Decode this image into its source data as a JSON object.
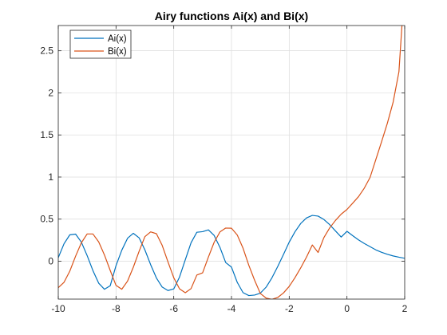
{
  "chart_data": {
    "type": "line",
    "title": "Airy functions Ai(x) and Bi(x)",
    "xlabel": "",
    "ylabel": "",
    "xlim": [
      -10,
      2
    ],
    "ylim": [
      -0.45,
      2.8
    ],
    "xticks": [
      -10,
      -8,
      -6,
      -4,
      -2,
      0,
      2
    ],
    "xtick_labels": [
      "-10",
      "-8",
      "-6",
      "-4",
      "-2",
      "0",
      "2"
    ],
    "yticks": [
      0,
      0.5,
      1,
      1.5,
      2,
      2.5
    ],
    "ytick_labels": [
      "0",
      "0.5",
      "1",
      "1.5",
      "2",
      "2.5"
    ],
    "grid": true,
    "legend_position": "top-left",
    "series": [
      {
        "name": "Ai(x)",
        "color": "#0072BD",
        "x": [
          -10,
          -9.8,
          -9.6,
          -9.4,
          -9.2,
          -9,
          -8.8,
          -8.6,
          -8.4,
          -8.2,
          -8,
          -7.8,
          -7.6,
          -7.4,
          -7.2,
          -7,
          -6.8,
          -6.6,
          -6.4,
          -6.2,
          -6,
          -5.8,
          -5.6,
          -5.4,
          -5.2,
          -5,
          -4.8,
          -4.6,
          -4.4,
          -4.2,
          -4,
          -3.8,
          -3.6,
          -3.4,
          -3.2,
          -3,
          -2.8,
          -2.6,
          -2.4,
          -2.2,
          -2,
          -1.8,
          -1.6,
          -1.4,
          -1.2,
          -1,
          -0.8,
          -0.6,
          -0.4,
          -0.2,
          0,
          0.2,
          0.4,
          0.6,
          0.8,
          1,
          1.2,
          1.4,
          1.6,
          1.8,
          2
        ],
        "y": [
          0.042,
          0.208,
          0.314,
          0.322,
          0.227,
          0.067,
          -0.111,
          -0.261,
          -0.333,
          -0.291,
          -0.053,
          0.131,
          0.273,
          0.332,
          0.278,
          0.135,
          -0.041,
          -0.199,
          -0.307,
          -0.348,
          -0.329,
          -0.188,
          0.017,
          0.22,
          0.344,
          0.351,
          0.373,
          0.306,
          0.165,
          -0.016,
          -0.07,
          -0.251,
          -0.373,
          -0.408,
          -0.402,
          -0.379,
          -0.308,
          -0.198,
          -0.064,
          0.079,
          0.227,
          0.35,
          0.449,
          0.515,
          0.544,
          0.536,
          0.496,
          0.435,
          0.361,
          0.287,
          0.355,
          0.303,
          0.254,
          0.211,
          0.173,
          0.135,
          0.106,
          0.082,
          0.063,
          0.048,
          0.035
        ]
      },
      {
        "name": "Bi(x)",
        "color": "#D95319",
        "x": [
          -10,
          -9.8,
          -9.6,
          -9.4,
          -9.2,
          -9,
          -8.8,
          -8.6,
          -8.4,
          -8.2,
          -8,
          -7.8,
          -7.6,
          -7.4,
          -7.2,
          -7,
          -6.8,
          -6.6,
          -6.4,
          -6.2,
          -6,
          -5.8,
          -5.6,
          -5.4,
          -5.2,
          -5,
          -4.8,
          -4.6,
          -4.4,
          -4.2,
          -4,
          -3.8,
          -3.6,
          -3.4,
          -3.2,
          -3,
          -2.8,
          -2.6,
          -2.4,
          -2.2,
          -2,
          -1.8,
          -1.6,
          -1.4,
          -1.2,
          -1,
          -0.8,
          -0.6,
          -0.4,
          -0.2,
          0,
          0.2,
          0.4,
          0.6,
          0.8,
          1,
          1.2,
          1.4,
          1.6,
          1.8,
          2
        ],
        "y": [
          -0.314,
          -0.25,
          -0.117,
          0.06,
          0.219,
          0.324,
          0.324,
          0.23,
          0.074,
          -0.11,
          -0.287,
          -0.333,
          -0.236,
          -0.071,
          0.118,
          0.292,
          0.349,
          0.327,
          0.188,
          -0.008,
          -0.196,
          -0.328,
          -0.374,
          -0.325,
          -0.164,
          -0.138,
          0.049,
          0.225,
          0.348,
          0.394,
          0.392,
          0.312,
          0.155,
          -0.048,
          -0.225,
          -0.383,
          -0.438,
          -0.453,
          -0.431,
          -0.377,
          -0.299,
          -0.195,
          -0.078,
          0.05,
          0.193,
          0.104,
          0.28,
          0.395,
          0.484,
          0.559,
          0.615,
          0.69,
          0.767,
          0.868,
          0.995,
          1.207,
          1.421,
          1.64,
          1.89,
          2.25,
          3.298
        ]
      }
    ]
  }
}
